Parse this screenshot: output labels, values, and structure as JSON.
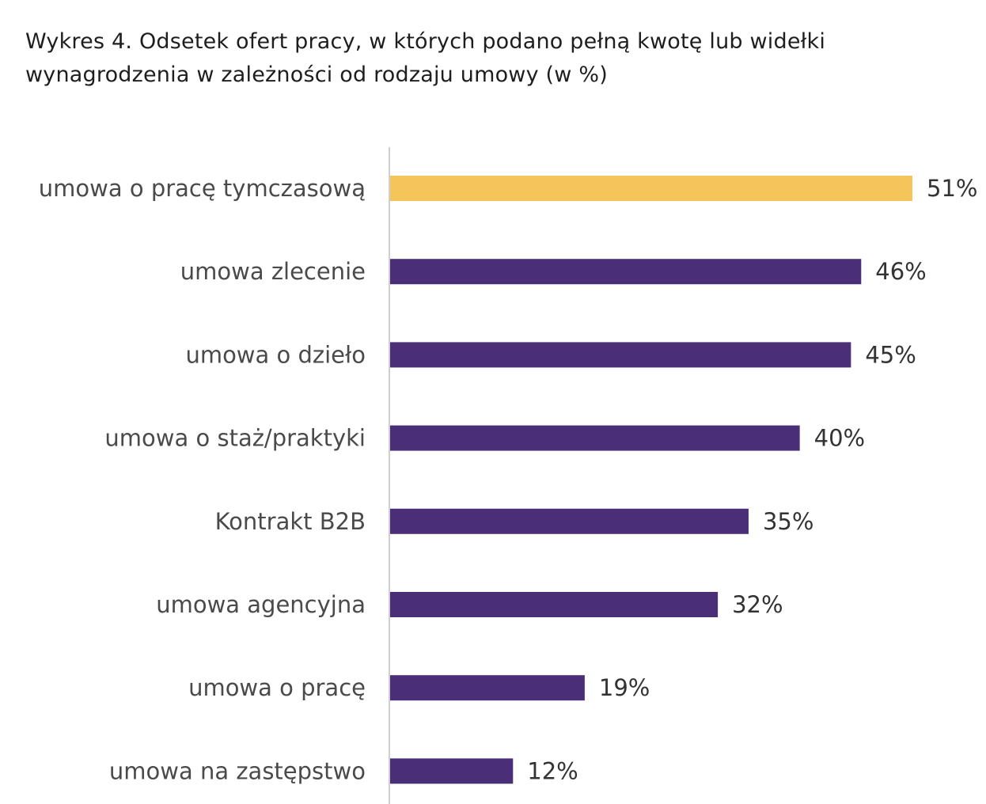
{
  "title_line1": "Wykres 4. Odsetek ofert pracy, w których podano pełną kwotę lub widełki",
  "title_line2": "wynagrodzenia w zależności od rodzaju umowy (w %)",
  "chart_data": {
    "type": "bar",
    "orientation": "horizontal",
    "title": "Wykres 4. Odsetek ofert pracy, w których podano pełną kwotę lub widełki wynagrodzenia w zależności od rodzaju umowy (w %)",
    "categories": [
      "umowa o pracę tymczasową",
      "umowa zlecenie",
      "umowa o dzieło",
      "umowa o staż/praktyki",
      "Kontrakt B2B",
      "umowa agencyjna",
      "umowa o pracę",
      "umowa na zastępstwo"
    ],
    "values": [
      51,
      46,
      45,
      40,
      35,
      32,
      19,
      12
    ],
    "value_labels": [
      "51%",
      "46%",
      "45%",
      "40%",
      "35%",
      "32%",
      "19%",
      "12%"
    ],
    "unit": "%",
    "highlight_index": 0,
    "colors": {
      "highlight": "#F5C45A",
      "default": "#4A2F78",
      "axis": "#CFCFCF"
    },
    "xlim": [
      0,
      51
    ],
    "grid": false,
    "legend": "none"
  }
}
